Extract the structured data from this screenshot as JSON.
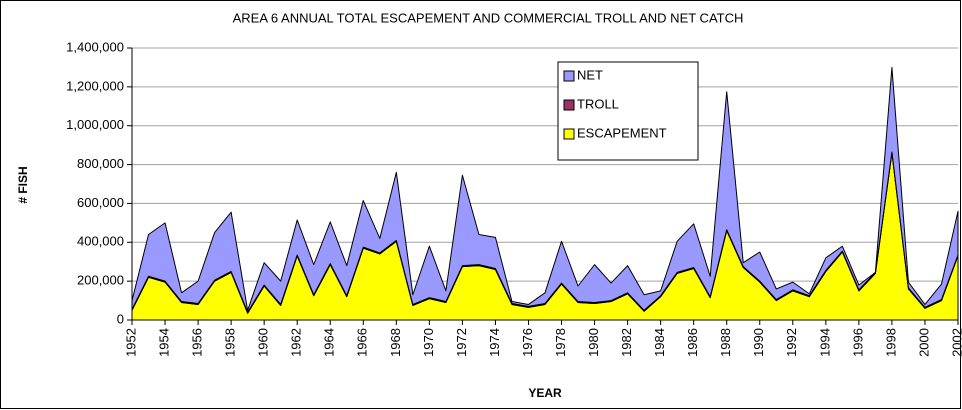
{
  "chart_data": {
    "type": "stacked-area",
    "title": "AREA 6 ANNUAL TOTAL ESCAPEMENT AND COMMERCIAL TROLL AND NET CATCH",
    "xlabel": "YEAR",
    "ylabel": "# FISH",
    "x": [
      1952,
      1953,
      1954,
      1955,
      1956,
      1957,
      1958,
      1959,
      1960,
      1961,
      1962,
      1963,
      1964,
      1965,
      1966,
      1967,
      1968,
      1969,
      1970,
      1971,
      1972,
      1973,
      1974,
      1975,
      1976,
      1977,
      1978,
      1979,
      1980,
      1981,
      1982,
      1983,
      1984,
      1985,
      1986,
      1987,
      1988,
      1989,
      1990,
      1991,
      1992,
      1993,
      1994,
      1995,
      1996,
      1997,
      1998,
      1999,
      2000,
      2001,
      2002
    ],
    "xlim": [
      1952,
      2002
    ],
    "xticks": [
      1952,
      1954,
      1956,
      1958,
      1960,
      1962,
      1964,
      1966,
      1968,
      1970,
      1972,
      1974,
      1976,
      1978,
      1980,
      1982,
      1984,
      1986,
      1988,
      1990,
      1992,
      1994,
      1996,
      1998,
      2000,
      2002
    ],
    "ylim": [
      0,
      1400000
    ],
    "yticks": [
      0,
      {
        "value": 200000,
        "label": "200,000"
      },
      {
        "value": 400000,
        "label": "400,000"
      },
      {
        "value": 600000,
        "label": "600,000"
      },
      {
        "value": 800000,
        "label": "800,000"
      },
      {
        "value": 1000000,
        "label": "1,000,000"
      },
      {
        "value": 1200000,
        "label": "1,200,000"
      },
      {
        "value": 1400000,
        "label": "1,400,000"
      }
    ],
    "grid": true,
    "legend": "top-center",
    "series": [
      {
        "name": "NET",
        "color": "#9999ff",
        "values": [
          45000,
          215000,
          300000,
          45000,
          115000,
          245000,
          305000,
          10000,
          115000,
          120000,
          180000,
          155000,
          215000,
          155000,
          240000,
          75000,
          350000,
          50000,
          265000,
          55000,
          465000,
          155000,
          160000,
          10000,
          10000,
          55000,
          215000,
          80000,
          195000,
          90000,
          140000,
          80000,
          25000,
          160000,
          225000,
          105000,
          710000,
          20000,
          150000,
          55000,
          40000,
          10000,
          65000,
          25000,
          25000,
          0,
          435000,
          30000,
          15000,
          80000,
          225000
        ]
      },
      {
        "name": "TROLL",
        "color": "#993366",
        "values": [
          5000,
          5000,
          5000,
          5000,
          5000,
          5000,
          5000,
          5000,
          5000,
          5000,
          5000,
          5000,
          5000,
          5000,
          5000,
          5000,
          5000,
          5000,
          5000,
          5000,
          5000,
          5000,
          5000,
          5000,
          5000,
          5000,
          5000,
          5000,
          5000,
          5000,
          5000,
          5000,
          5000,
          5000,
          5000,
          5000,
          5000,
          5000,
          5000,
          5000,
          5000,
          5000,
          5000,
          5000,
          5000,
          5000,
          5000,
          5000,
          5000,
          5000,
          5000
        ]
      },
      {
        "name": "ESCAPEMENT",
        "color": "#ffff00",
        "values": [
          50000,
          220000,
          195000,
          90000,
          80000,
          200000,
          245000,
          35000,
          175000,
          75000,
          330000,
          125000,
          285000,
          120000,
          370000,
          340000,
          405000,
          75000,
          110000,
          90000,
          275000,
          280000,
          260000,
          80000,
          65000,
          80000,
          185000,
          90000,
          85000,
          95000,
          135000,
          45000,
          120000,
          240000,
          265000,
          115000,
          460000,
          270000,
          195000,
          100000,
          150000,
          120000,
          250000,
          350000,
          150000,
          240000,
          860000,
          160000,
          60000,
          100000,
          330000
        ]
      }
    ]
  }
}
